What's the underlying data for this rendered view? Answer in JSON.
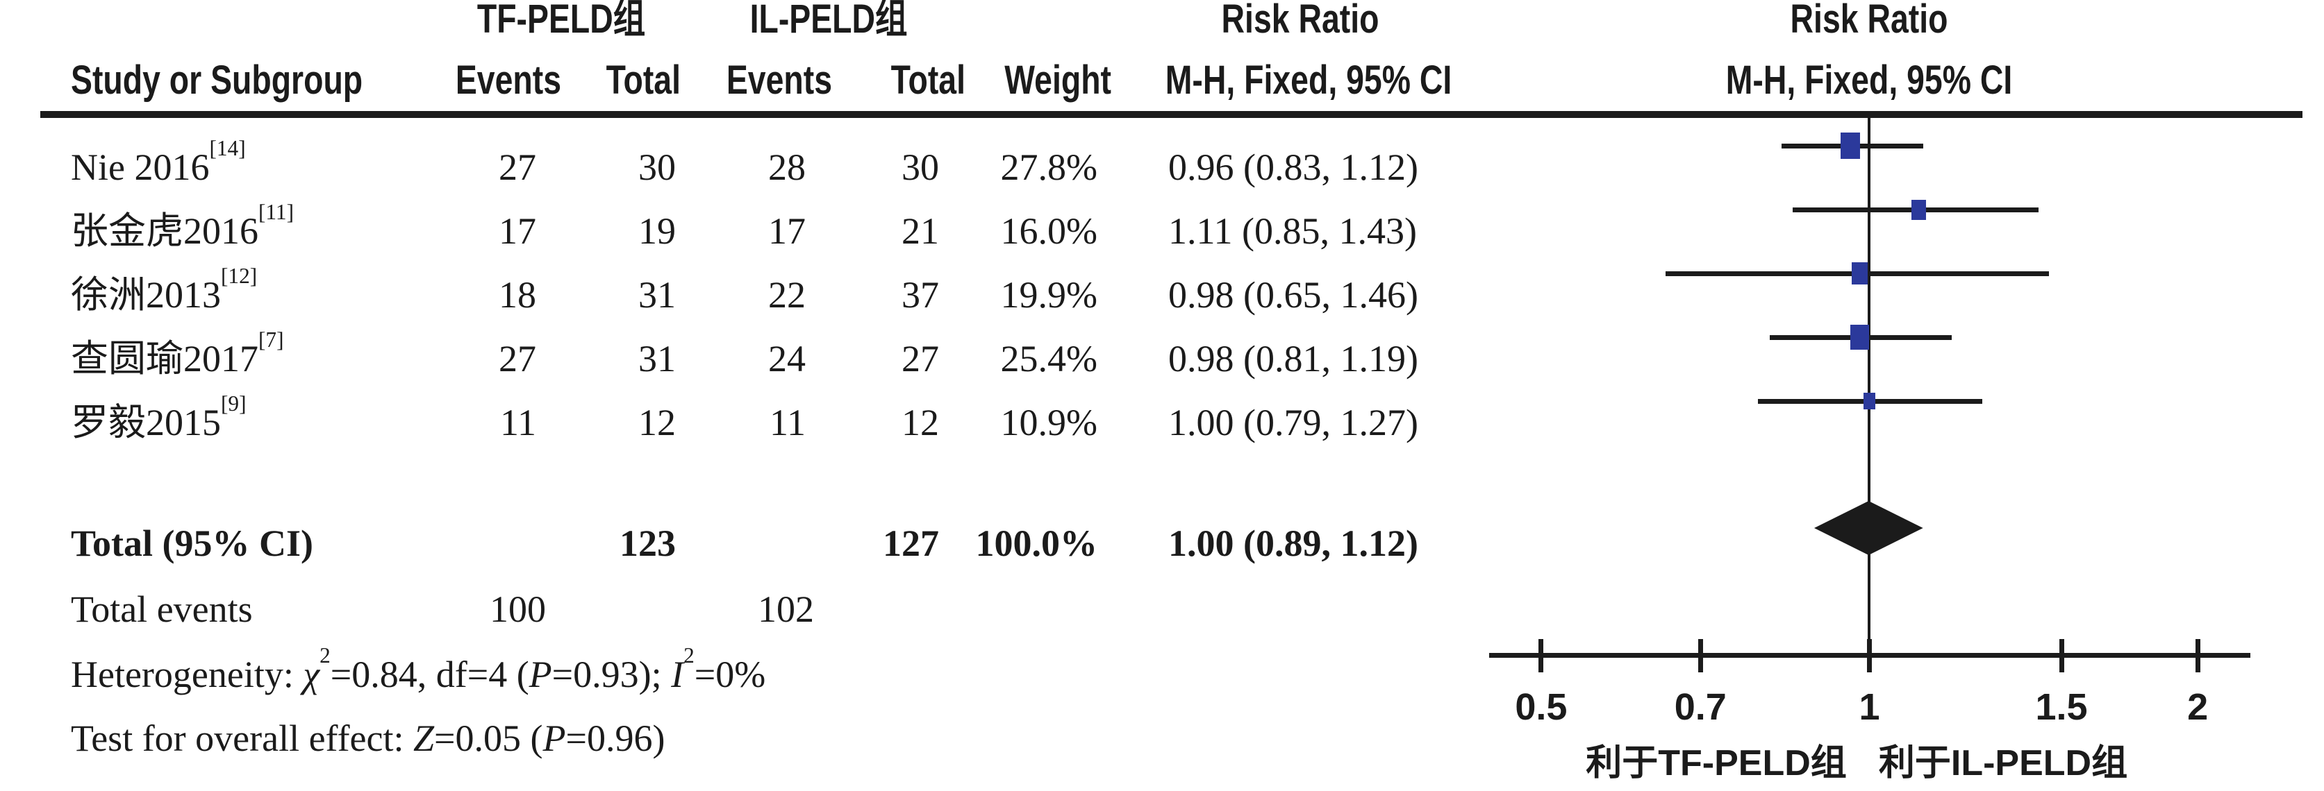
{
  "colors": {
    "ink": "#1b1b1b",
    "marker_blue": "#2b399b",
    "background": "#ffffff"
  },
  "header": {
    "group1": "TF-PELD组",
    "group2": "IL-PELD组",
    "risk_ratio": "Risk Ratio",
    "study_col": "Study or Subgroup",
    "events_col": "Events",
    "total_col": "Total",
    "weight_col": "Weight",
    "method_col": "M-H, Fixed, 95% CI"
  },
  "totals": {
    "label": "Total (95% CI)",
    "tf_total": "123",
    "il_total": "127",
    "weight": "100.0%",
    "ci_text": "1.00 (0.89, 1.12)",
    "events_label": "Total events",
    "tf_events": "100",
    "il_events": "102"
  },
  "footnotes": {
    "heterogeneity_html": "Heterogeneity: <i>χ</i><sup class=\"s2\">2</sup>=0.84, df=4 (<i>P</i>=0.93); <i>I</i><sup class=\"s2\">2</sup>=0%",
    "overall_html": "Test for overall effect: <i>Z</i>=0.05 (<i>P</i>=0.96)"
  },
  "plot": {
    "favors_left": "利于TF-PELD组",
    "favors_right": "利于IL-PELD组"
  },
  "chart_data": {
    "type": "forest",
    "effect_measure": "Risk Ratio",
    "method": "M-H, Fixed, 95% CI",
    "x_scale": "log",
    "axis_ticks": [
      0.5,
      0.7,
      1,
      1.5,
      2
    ],
    "axis_range": [
      0.45,
      2.24
    ],
    "favors_left": "利于TF-PELD组",
    "favors_right": "利于IL-PELD组",
    "studies": [
      {
        "label": "Nie 2016",
        "ref": "[14]",
        "tf_events": 27,
        "tf_total": 30,
        "il_events": 28,
        "il_total": 30,
        "weight": "27.8%",
        "weight_value": 27.8,
        "rr": 0.96,
        "ci_low": 0.83,
        "ci_high": 1.12,
        "ci_text": "0.96 (0.83, 1.12)"
      },
      {
        "label": "张金虎2016",
        "ref": "[11]",
        "tf_events": 17,
        "tf_total": 19,
        "il_events": 17,
        "il_total": 21,
        "weight": "16.0%",
        "weight_value": 16.0,
        "rr": 1.11,
        "ci_low": 0.85,
        "ci_high": 1.43,
        "ci_text": "1.11 (0.85, 1.43)"
      },
      {
        "label": "徐洲2013",
        "ref": "[12]",
        "tf_events": 18,
        "tf_total": 31,
        "il_events": 22,
        "il_total": 37,
        "weight": "19.9%",
        "weight_value": 19.9,
        "rr": 0.98,
        "ci_low": 0.65,
        "ci_high": 1.46,
        "ci_text": "0.98 (0.65, 1.46)"
      },
      {
        "label": "查圆瑜2017",
        "ref": "[7]",
        "tf_events": 27,
        "tf_total": 31,
        "il_events": 24,
        "il_total": 27,
        "weight": "25.4%",
        "weight_value": 25.4,
        "rr": 0.98,
        "ci_low": 0.81,
        "ci_high": 1.19,
        "ci_text": "0.98 (0.81, 1.19)"
      },
      {
        "label": "罗毅2015",
        "ref": "[9]",
        "tf_events": 11,
        "tf_total": 12,
        "il_events": 11,
        "il_total": 12,
        "weight": "10.9%",
        "weight_value": 10.9,
        "rr": 1.0,
        "ci_low": 0.79,
        "ci_high": 1.27,
        "ci_text": "1.00 (0.79, 1.27)"
      }
    ],
    "total": {
      "label": "Total (95% CI)",
      "tf_total": 123,
      "il_total": 127,
      "tf_events": 100,
      "il_events": 102,
      "weight": "100.0%",
      "weight_value": 100.0,
      "rr": 1.0,
      "ci_low": 0.89,
      "ci_high": 1.12,
      "ci_text": "1.00 (0.89, 1.12)"
    },
    "heterogeneity": "Heterogeneity: χ2=0.84, df=4 (P=0.93); I2=0%",
    "overall_effect": "Test for overall effect: Z=0.05 (P=0.96)"
  }
}
